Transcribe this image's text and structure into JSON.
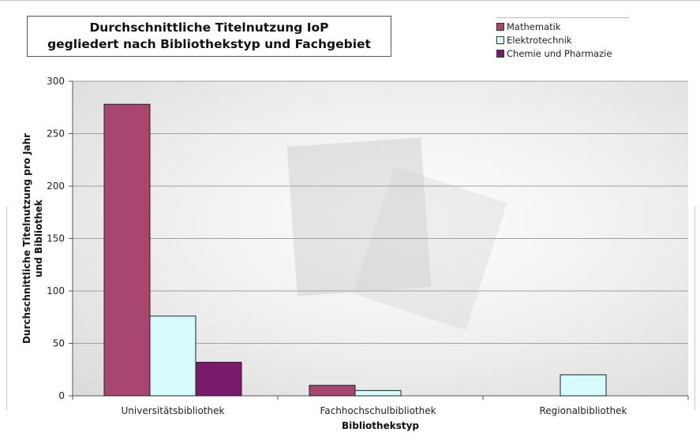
{
  "chart_data": {
    "type": "bar",
    "title_lines": [
      "Durchschnittliche Titelnutzung IoP",
      "gegliedert nach Bibliothekstyp und Fachgebiet"
    ],
    "xlabel": "Bibliothekstyp",
    "ylabel_lines": [
      "Durchschnittliche Titelnutzung pro Jahr",
      "und Bibliothek"
    ],
    "categories": [
      "Universitätsbibliothek",
      "Fachhochschulbibliothek",
      "Regionalbibliothek"
    ],
    "series": [
      {
        "name": "Mathematik",
        "color": "#a8466f",
        "values": [
          278,
          10,
          0
        ]
      },
      {
        "name": "Elektrotechnik",
        "color": "#d6fbfd",
        "values": [
          76,
          5,
          20
        ]
      },
      {
        "name": "Chemie und Pharmazie",
        "color": "#7a1a6b",
        "values": [
          32,
          0,
          0
        ]
      }
    ],
    "ylim": [
      0,
      300
    ],
    "yticks": [
      0,
      50,
      100,
      150,
      200,
      250,
      300
    ],
    "grid": true,
    "legend_position": "top-right"
  }
}
